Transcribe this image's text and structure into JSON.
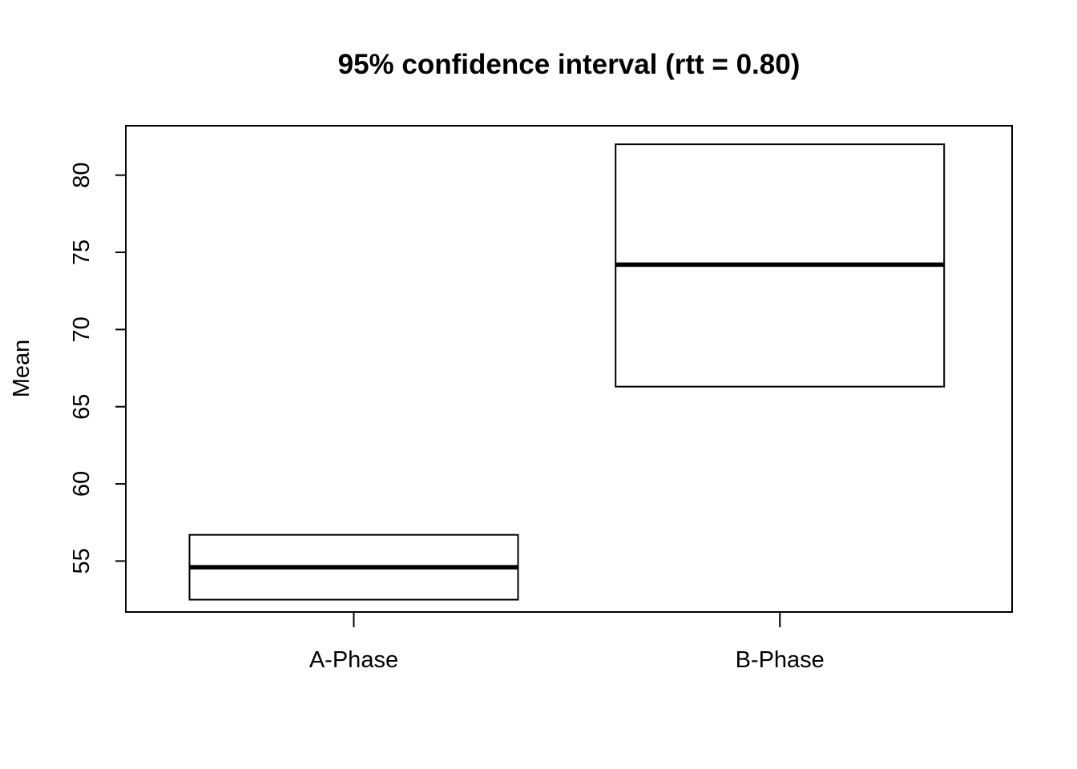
{
  "chart_data": {
    "type": "box",
    "title": "95% confidence interval (rtt = 0.80)",
    "xlabel": "",
    "ylabel": "Mean",
    "categories": [
      "A-Phase",
      "B-Phase"
    ],
    "mean": [
      54.6,
      74.2
    ],
    "ci_lower": [
      52.5,
      66.3
    ],
    "ci_upper": [
      56.7,
      82.0
    ],
    "ylim": [
      51.7,
      83.2
    ],
    "yticks": [
      "55",
      "60",
      "65",
      "70",
      "75",
      "80"
    ],
    "grid": false,
    "legend": "none",
    "colors": {
      "box_stroke": "#000000",
      "mean_line": "#000000",
      "background": "#ffffff"
    }
  }
}
